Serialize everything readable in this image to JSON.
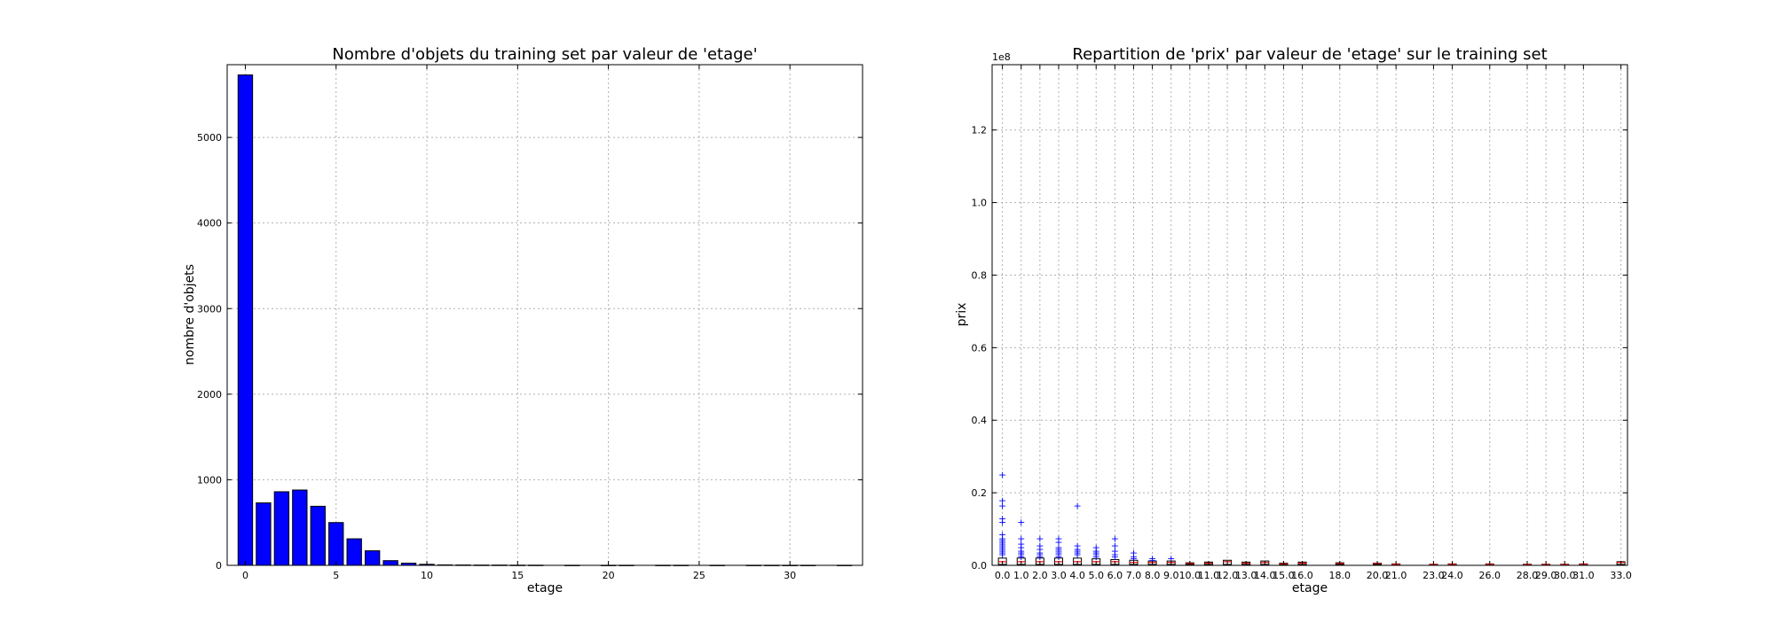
{
  "chart_data": [
    {
      "type": "bar",
      "title": "Nombre d'objets du training set par valeur de 'etage'",
      "xlabel": "etage",
      "ylabel": "nombre d'objets",
      "xlim": [
        -1,
        34
      ],
      "ylim": [
        0,
        5850
      ],
      "xticks": [
        0,
        5,
        10,
        15,
        20,
        25,
        30
      ],
      "yticks": [
        0,
        1000,
        2000,
        3000,
        4000,
        5000
      ],
      "grid": true,
      "bar_color": "#0000ff",
      "x": [
        0,
        1,
        2,
        3,
        4,
        5,
        6,
        7,
        8,
        9,
        10,
        11,
        12,
        13,
        14,
        15,
        16,
        18,
        20,
        21,
        23,
        24,
        26,
        28,
        29,
        30,
        31,
        33
      ],
      "values": [
        5730,
        730,
        860,
        880,
        690,
        500,
        310,
        170,
        55,
        25,
        12,
        5,
        4,
        3,
        3,
        2,
        2,
        1,
        1,
        1,
        1,
        1,
        1,
        1,
        1,
        1,
        1,
        1
      ]
    },
    {
      "type": "box",
      "title": "Repartition de 'prix' par valeur de 'etage' sur le training set",
      "xlabel": "etage",
      "ylabel": "prix",
      "y_scale_label": "1e8",
      "ylim": [
        0,
        1.38
      ],
      "yticks": [
        "0.0",
        "0.2",
        "0.4",
        "0.6",
        "0.8",
        "1.0",
        "1.2"
      ],
      "categories": [
        "0.0",
        "1.0",
        "2.0",
        "3.0",
        "4.0",
        "5.0",
        "6.0",
        "7.0",
        "8.0",
        "9.0",
        "10.0",
        "11.0",
        "12.0",
        "13.0",
        "14.0",
        "15.0",
        "16.0",
        "18.0",
        "20.0",
        "21.0",
        "23.0",
        "24.0",
        "26.0",
        "28.0",
        "29.0",
        "30.0",
        "31.0",
        "33.0"
      ],
      "grid": true,
      "box_color": "#000000",
      "median_color": "#ff0000",
      "flier_color": "#0000ff",
      "medians": [
        0.01,
        0.01,
        0.01,
        0.01,
        0.01,
        0.01,
        0.01,
        0.008,
        0.008,
        0.008,
        0.005,
        0.006,
        0.01,
        0.006,
        0.008,
        0.004,
        0.006,
        0.005,
        0.005,
        0.003,
        0.002,
        0.003,
        0.003,
        0.002,
        0.002,
        0.002,
        0.003,
        0.008
      ],
      "box_tops": [
        0.02,
        0.02,
        0.02,
        0.02,
        0.02,
        0.018,
        0.016,
        0.014,
        0.012,
        0.012,
        0.007,
        0.009,
        0.014,
        0.009,
        0.012,
        0.006,
        0.009,
        0.007,
        0.006,
        0.004,
        0.003,
        0.004,
        0.004,
        0.003,
        0.003,
        0.003,
        0.004,
        0.01
      ],
      "fliers": [
        [
          0.25,
          0.18,
          0.165,
          0.13,
          0.12,
          0.085,
          0.075,
          0.07,
          0.065,
          0.06,
          0.055,
          0.05,
          0.045,
          0.04,
          0.035,
          0.03
        ],
        [
          0.12,
          0.075,
          0.06,
          0.05,
          0.04,
          0.035,
          0.03,
          0.025
        ],
        [
          0.075,
          0.055,
          0.045,
          0.035,
          0.03,
          0.025
        ],
        [
          0.075,
          0.065,
          0.05,
          0.045,
          0.04,
          0.035,
          0.03,
          0.025
        ],
        [
          0.165,
          0.055,
          0.045,
          0.04,
          0.035,
          0.03
        ],
        [
          0.05,
          0.04,
          0.035,
          0.03,
          0.025
        ],
        [
          0.075,
          0.055,
          0.04,
          0.03,
          0.025
        ],
        [
          0.035,
          0.025,
          0.02
        ],
        [
          0.02,
          0.015
        ],
        [
          0.02
        ],
        [],
        [],
        [],
        [],
        [],
        [],
        [],
        [],
        [],
        [],
        [],
        [],
        [],
        [],
        [],
        [],
        [],
        []
      ]
    }
  ]
}
